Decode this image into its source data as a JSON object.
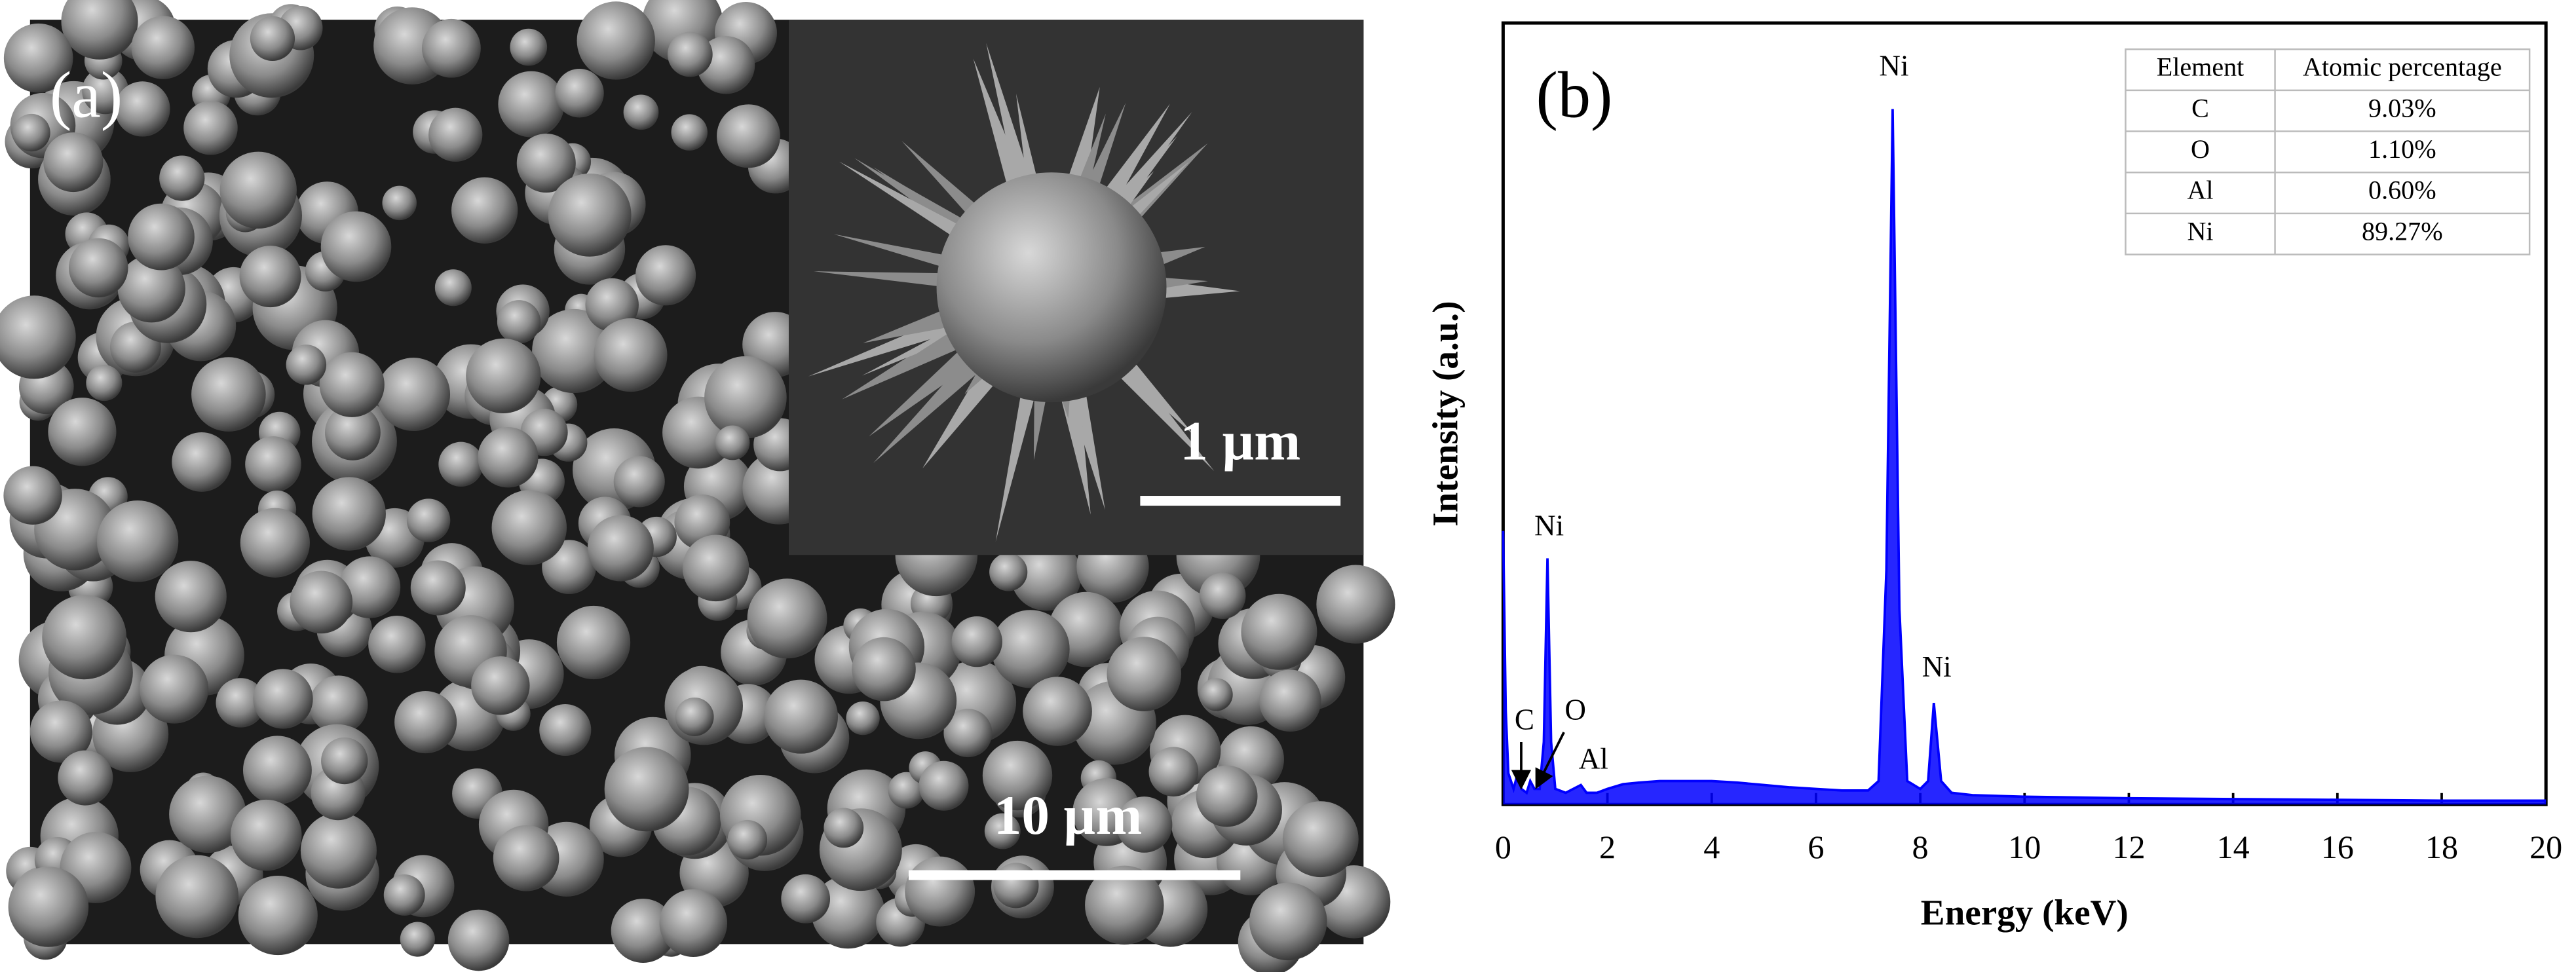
{
  "image": {
    "label": "(a)",
    "scale_bars": [
      "10 µm",
      "1 µm"
    ]
  },
  "chart_data": {
    "type": "line",
    "label": "(b)",
    "x_label": "Energy (keV)",
    "y_label": "Intensity (a.u.)",
    "xlim": [
      0,
      20
    ],
    "xticks": [
      0,
      2,
      4,
      6,
      8,
      10,
      12,
      14,
      16,
      18,
      20
    ],
    "ylim": [
      0,
      100
    ],
    "series": [
      {
        "color": "#0000ff",
        "x": [
          0,
          0.05,
          0.1,
          0.2,
          0.28,
          0.35,
          0.45,
          0.52,
          0.6,
          0.7,
          0.78,
          0.85,
          0.92,
          1.0,
          1.2,
          1.49,
          1.6,
          1.8,
          2.0,
          2.3,
          2.6,
          3,
          3.5,
          4,
          4.5,
          5,
          5.5,
          6,
          6.5,
          7,
          7.2,
          7.35,
          7.47,
          7.6,
          7.75,
          8,
          8.15,
          8.26,
          8.4,
          8.6,
          9,
          10,
          12,
          14,
          16,
          18,
          20
        ],
        "values": [
          35,
          12,
          4,
          2,
          4,
          2,
          1.5,
          3,
          2,
          2,
          8,
          31.5,
          8,
          2,
          1.5,
          2.5,
          1.5,
          1.5,
          2,
          2.6,
          2.8,
          3,
          3,
          3,
          2.8,
          2.5,
          2.2,
          2,
          1.8,
          1.8,
          3,
          30,
          89,
          25,
          3,
          2,
          3,
          13,
          3,
          1.5,
          1.2,
          1,
          0.8,
          0.7,
          0.6,
          0.5,
          0.5
        ]
      }
    ],
    "annotations": [
      "Ni",
      "Ni",
      "Ni",
      "C",
      "O",
      "Al"
    ],
    "table": {
      "header": [
        "Element",
        "Atomic percentage"
      ],
      "rows": [
        [
          "C",
          "9.03%"
        ],
        [
          "O",
          "1.10%"
        ],
        [
          "Al",
          "0.60%"
        ],
        [
          "Ni",
          "89.27%"
        ]
      ]
    }
  }
}
